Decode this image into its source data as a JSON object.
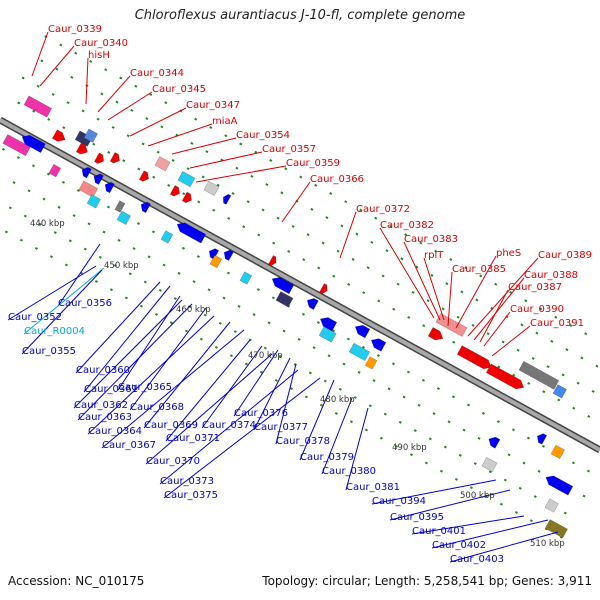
{
  "title": "Chloroflexus aurantiacus J-10-fl, complete genome",
  "footer": {
    "accession_label": "Accession:",
    "accession": "NC_010175",
    "topology_label": "Topology:",
    "topology": "circular",
    "length_label": "Length:",
    "length": "5,258,541 bp",
    "genes_label": "Genes:",
    "genes": "3,911"
  },
  "scale_labels": [
    "440 kbp",
    "450 kbp",
    "460 kbp",
    "470 kbp",
    "480 kbp",
    "490 kbp",
    "500 kbp",
    "510 kbp"
  ],
  "colors": {
    "backbone": "#8c8c8c",
    "forward_gene": "#ee0000",
    "reverse_gene": "#0000ee",
    "rna_gene": "#00ccdd",
    "tick": "#228822",
    "red_label": "#dd0000",
    "blue_label": "#0000cc",
    "cyan_label": "#00aadd"
  },
  "top_labels": [
    "Caur_0339",
    "Caur_0340",
    "hisH",
    "Caur_0344",
    "Caur_0345",
    "Caur_0347",
    "miaA",
    "Caur_0354",
    "Caur_0357",
    "Caur_0359",
    "Caur_0366",
    "Caur_0372",
    "Caur_0382",
    "Caur_0383",
    "rplT",
    "pheS",
    "Caur_0385",
    "Caur_0389",
    "Caur_0388",
    "Caur_0387",
    "Caur_0390",
    "Caur_0391"
  ],
  "bottom_labels": [
    "Caur_0352",
    "Caur_0356",
    "Caur_R0004",
    "Caur_0355",
    "Caur_0360",
    "Caur_0361",
    "Caur_0365",
    "Caur_0362",
    "Caur_0363",
    "Caur_0368",
    "Caur_0364",
    "Caur_0369",
    "Caur_0367",
    "Caur_0371",
    "Caur_0374",
    "Caur_0376",
    "Caur_0370",
    "Caur_0377",
    "Caur_0378",
    "Caur_0373",
    "Caur_0379",
    "Caur_0375",
    "Caur_0380",
    "Caur_0381",
    "Caur_0394",
    "Caur_0395",
    "Caur_0401",
    "Caur_0402",
    "Caur_0403"
  ]
}
